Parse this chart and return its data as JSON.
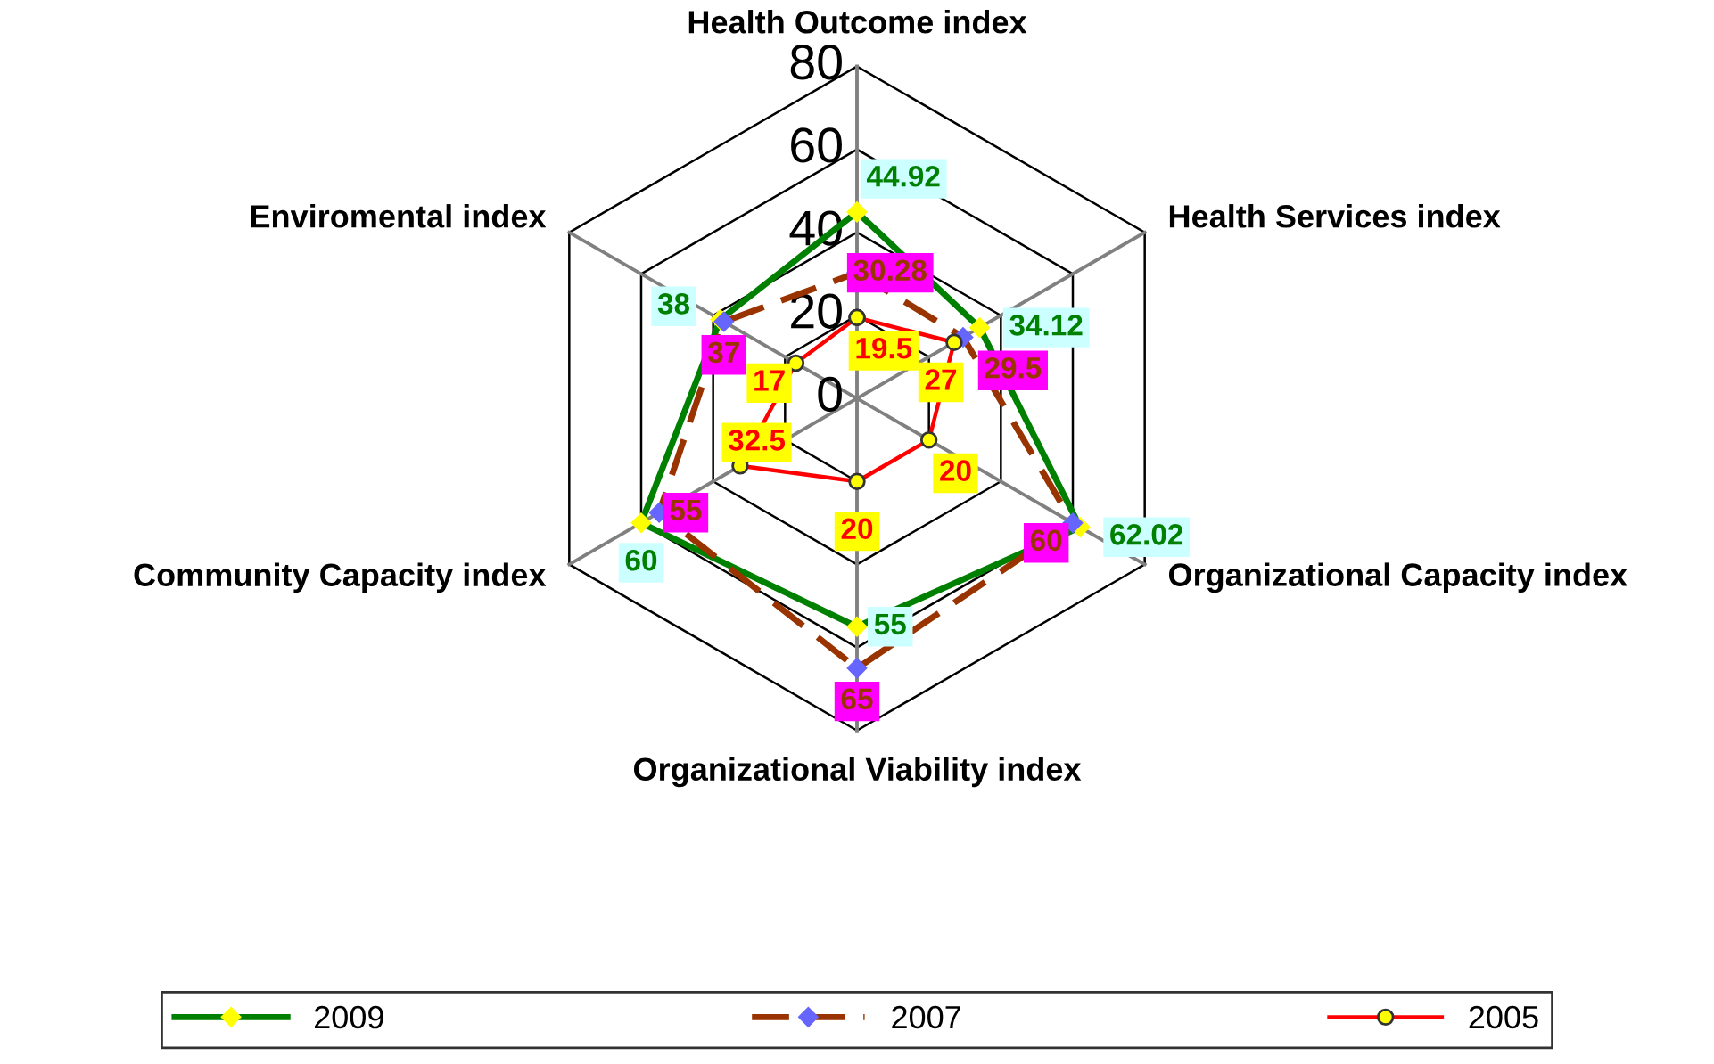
{
  "chart_data": {
    "type": "radar",
    "categories": [
      "Health Outcome index",
      "Health Services index",
      "Organizational Capacity index",
      "Organizational Viability index",
      "Community Capacity index",
      "Enviromental index"
    ],
    "series": [
      {
        "name": "2009",
        "color": "#008000",
        "values": [
          44.92,
          34.12,
          62.02,
          55,
          60,
          38
        ],
        "marker": "diamond",
        "line_style": "solid"
      },
      {
        "name": "2007",
        "color": "#993300",
        "values": [
          30.28,
          29.5,
          60,
          65,
          55,
          37
        ],
        "marker": "diamond",
        "line_style": "dashed"
      },
      {
        "name": "2005",
        "color": "#ff0000",
        "values": [
          19.5,
          27,
          20,
          20,
          32.5,
          17
        ],
        "marker": "circle",
        "line_style": "solid"
      }
    ],
    "ylim": [
      0,
      80
    ],
    "yticks": [
      0,
      20,
      40,
      60,
      80
    ],
    "grid": true,
    "data_labels": true,
    "legend": "bottom"
  }
}
